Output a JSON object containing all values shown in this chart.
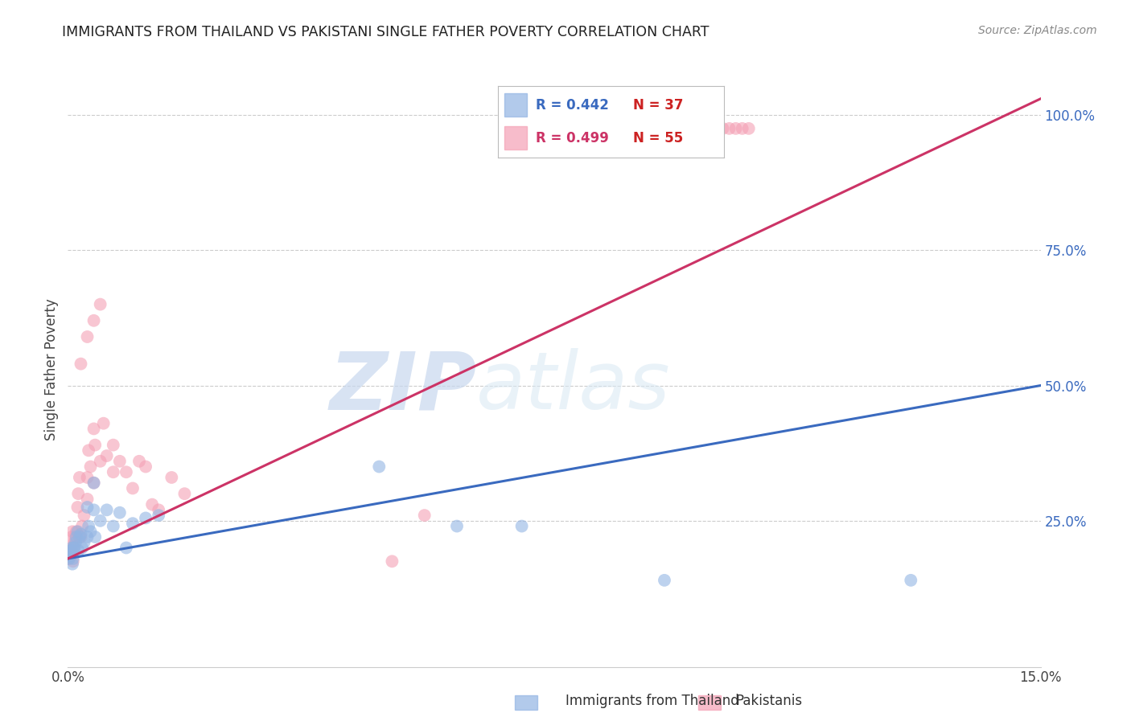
{
  "title": "IMMIGRANTS FROM THAILAND VS PAKISTANI SINGLE FATHER POVERTY CORRELATION CHART",
  "source": "Source: ZipAtlas.com",
  "ylabel": "Single Father Poverty",
  "ytick_labels": [
    "100.0%",
    "75.0%",
    "50.0%",
    "25.0%"
  ],
  "ytick_values": [
    1.0,
    0.75,
    0.5,
    0.25
  ],
  "xlim": [
    0.0,
    0.15
  ],
  "ylim": [
    -0.02,
    1.08
  ],
  "blue_R": "0.442",
  "blue_N": "37",
  "pink_R": "0.499",
  "pink_N": "55",
  "blue_color": "#92b4e3",
  "pink_color": "#f4a0b5",
  "blue_line_color": "#3a6abf",
  "pink_line_color": "#cc3366",
  "legend_blue_label": "Immigrants from Thailand",
  "legend_pink_label": "Pakistanis",
  "watermark_zip": "ZIP",
  "watermark_atlas": "atlas",
  "blue_points_x": [
    0.0002,
    0.0003,
    0.0004,
    0.0005,
    0.0006,
    0.0007,
    0.0008,
    0.0009,
    0.001,
    0.0012,
    0.0013,
    0.0015,
    0.0016,
    0.0018,
    0.002,
    0.0022,
    0.0025,
    0.003,
    0.003,
    0.0032,
    0.0035,
    0.004,
    0.004,
    0.0042,
    0.005,
    0.006,
    0.007,
    0.008,
    0.009,
    0.01,
    0.012,
    0.014,
    0.048,
    0.06,
    0.07,
    0.092,
    0.13
  ],
  "blue_points_y": [
    0.18,
    0.185,
    0.19,
    0.195,
    0.2,
    0.17,
    0.18,
    0.2,
    0.2,
    0.21,
    0.22,
    0.23,
    0.195,
    0.22,
    0.225,
    0.2,
    0.21,
    0.22,
    0.275,
    0.24,
    0.23,
    0.27,
    0.32,
    0.22,
    0.25,
    0.27,
    0.24,
    0.265,
    0.2,
    0.245,
    0.255,
    0.26,
    0.35,
    0.24,
    0.24,
    0.14,
    0.14
  ],
  "pink_points_x": [
    0.0002,
    0.0003,
    0.0004,
    0.0005,
    0.0006,
    0.0007,
    0.0008,
    0.0009,
    0.001,
    0.0011,
    0.0013,
    0.0015,
    0.0016,
    0.0018,
    0.002,
    0.0022,
    0.0025,
    0.003,
    0.003,
    0.0032,
    0.0035,
    0.004,
    0.004,
    0.0042,
    0.005,
    0.0055,
    0.006,
    0.007,
    0.007,
    0.008,
    0.009,
    0.01,
    0.011,
    0.012,
    0.013,
    0.014,
    0.016,
    0.018,
    0.002,
    0.003,
    0.004,
    0.005,
    0.05,
    0.055,
    0.08,
    0.085,
    0.09,
    0.095,
    0.098,
    0.1,
    0.101,
    0.102,
    0.103,
    0.104,
    0.105
  ],
  "pink_points_y": [
    0.18,
    0.19,
    0.185,
    0.2,
    0.22,
    0.23,
    0.175,
    0.2,
    0.21,
    0.22,
    0.23,
    0.275,
    0.3,
    0.33,
    0.22,
    0.24,
    0.26,
    0.29,
    0.33,
    0.38,
    0.35,
    0.32,
    0.42,
    0.39,
    0.36,
    0.43,
    0.37,
    0.34,
    0.39,
    0.36,
    0.34,
    0.31,
    0.36,
    0.35,
    0.28,
    0.27,
    0.33,
    0.3,
    0.54,
    0.59,
    0.62,
    0.65,
    0.175,
    0.26,
    0.97,
    0.975,
    0.975,
    0.975,
    0.97,
    0.975,
    0.975,
    0.975,
    0.975,
    0.975,
    0.975
  ],
  "blue_line_x0": 0.0,
  "blue_line_y0": 0.18,
  "blue_line_x1": 0.15,
  "blue_line_y1": 0.5,
  "pink_line_x0": 0.0,
  "pink_line_y0": 0.18,
  "pink_line_x1": 0.15,
  "pink_line_y1": 1.03,
  "xtick_positions": [
    0.0,
    0.05,
    0.1,
    0.15
  ],
  "xtick_labels": [
    "0.0%",
    "",
    "",
    "15.0%"
  ]
}
